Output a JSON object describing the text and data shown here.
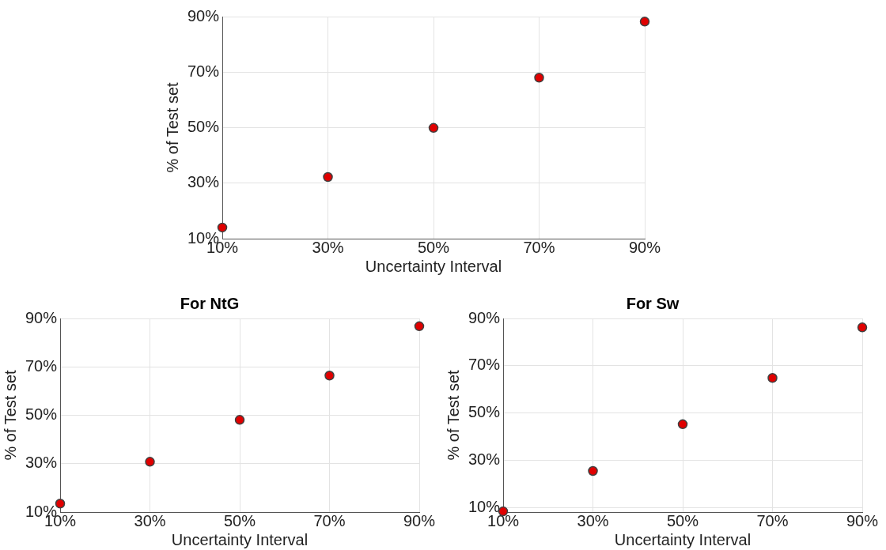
{
  "chart_data": [
    {
      "type": "scatter",
      "xlabel": "Uncertainty Interval",
      "ylabel": "% of Test set",
      "x": [
        10,
        30,
        50,
        70,
        90
      ],
      "xlim": [
        10,
        90
      ],
      "ylim": [
        10,
        90
      ],
      "xticks": [
        {
          "value": 10,
          "label": "10%"
        },
        {
          "value": 30,
          "label": "30%"
        },
        {
          "value": 50,
          "label": "50%"
        },
        {
          "value": 70,
          "label": "70%"
        },
        {
          "value": 90,
          "label": "90%"
        }
      ],
      "yticks": [
        {
          "value": 10,
          "label": "10%"
        },
        {
          "value": 30,
          "label": "30%"
        },
        {
          "value": 50,
          "label": "50%"
        },
        {
          "value": 70,
          "label": "70%"
        },
        {
          "value": 90,
          "label": "90%"
        }
      ],
      "series": [
        {
          "color": "#e00000",
          "values": [
            14.0,
            32.2,
            49.9,
            68.0,
            88.2
          ]
        }
      ],
      "grid": true,
      "legend": false,
      "marker": "circle"
    },
    {
      "type": "scatter",
      "title": "For NtG",
      "xlabel": "Uncertainty Interval",
      "ylabel": "% of Test set",
      "x": [
        10,
        30,
        50,
        70,
        90
      ],
      "xlim": [
        10,
        90
      ],
      "ylim": [
        10,
        90
      ],
      "xticks": [
        {
          "value": 10,
          "label": "10%"
        },
        {
          "value": 30,
          "label": "30%"
        },
        {
          "value": 50,
          "label": "50%"
        },
        {
          "value": 70,
          "label": "70%"
        },
        {
          "value": 90,
          "label": "90%"
        }
      ],
      "yticks": [
        {
          "value": 10,
          "label": "10%"
        },
        {
          "value": 30,
          "label": "30%"
        },
        {
          "value": 50,
          "label": "50%"
        },
        {
          "value": 70,
          "label": "70%"
        },
        {
          "value": 90,
          "label": "90%"
        }
      ],
      "series": [
        {
          "color": "#e00000",
          "values": [
            13.5,
            30.8,
            48.1,
            66.4,
            86.8
          ]
        }
      ],
      "grid": true,
      "legend": false,
      "marker": "circle"
    },
    {
      "type": "scatter",
      "title": "For Sw",
      "xlabel": "Uncertainty Interval",
      "ylabel": "% of Test set",
      "x": [
        10,
        30,
        50,
        70,
        90
      ],
      "xlim": [
        10,
        90
      ],
      "ylim": [
        8,
        90
      ],
      "xticks": [
        {
          "value": 10,
          "label": "10%"
        },
        {
          "value": 30,
          "label": "30%"
        },
        {
          "value": 50,
          "label": "50%"
        },
        {
          "value": 70,
          "label": "70%"
        },
        {
          "value": 90,
          "label": "90%"
        }
      ],
      "yticks": [
        {
          "value": 10,
          "label": "10%"
        },
        {
          "value": 30,
          "label": "30%"
        },
        {
          "value": 50,
          "label": "50%"
        },
        {
          "value": 70,
          "label": "70%"
        },
        {
          "value": 90,
          "label": "90%"
        }
      ],
      "series": [
        {
          "color": "#e00000",
          "values": [
            8.3,
            25.4,
            45.2,
            64.8,
            86.2
          ]
        }
      ],
      "grid": true,
      "legend": false,
      "marker": "circle"
    }
  ]
}
